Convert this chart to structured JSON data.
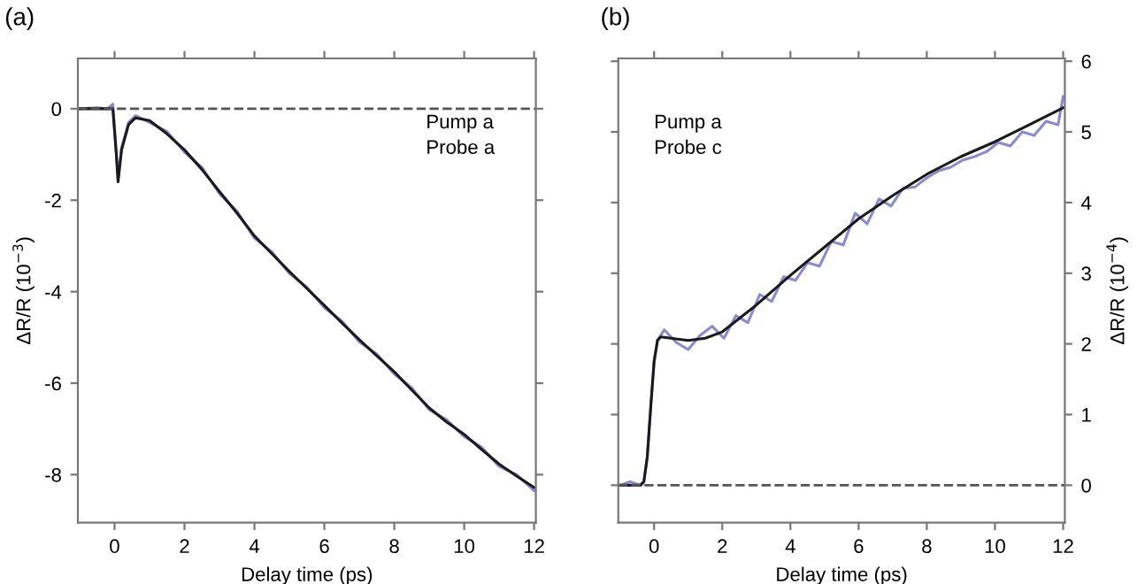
{
  "chart_data": [
    {
      "type": "line",
      "title": "(a)",
      "xlabel": "Delay time (ps)",
      "ylabel": "ΔR/R (10$^{−3}$)",
      "annotations": [
        "Pump a\nProbe a"
      ],
      "xlim": [
        -1.05,
        12.05
      ],
      "xticks": [
        0,
        2,
        4,
        6,
        8,
        10,
        12
      ],
      "ylim": [
        -9.05,
        1.1
      ],
      "yticks": [
        0,
        -2,
        -4,
        -6,
        -8
      ],
      "grid": false,
      "legend": false,
      "ref_lines": [
        {
          "axis": "y",
          "value": 0,
          "color": "#555555",
          "line_style": "dashed"
        }
      ],
      "series": [
        {
          "color": "#8a8ad0",
          "x": [
            -1,
            -0.5,
            -0.2,
            -0.05,
            0.05,
            0.1,
            0.2,
            0.4,
            0.6,
            1,
            1.5,
            2,
            2.5,
            3,
            3.5,
            4,
            4.5,
            5,
            5.5,
            6,
            6.5,
            7,
            7.5,
            8,
            8.5,
            9,
            9.5,
            10,
            10.5,
            11,
            11.5,
            12
          ],
          "values": [
            0,
            0.02,
            0,
            0.1,
            -0.95,
            -1.55,
            -0.85,
            -0.3,
            -0.15,
            -0.3,
            -0.5,
            -0.95,
            -1.28,
            -1.86,
            -2.24,
            -2.83,
            -3.13,
            -3.6,
            -3.9,
            -4.35,
            -4.64,
            -5.1,
            -5.36,
            -5.8,
            -6.1,
            -6.58,
            -6.8,
            -7.17,
            -7.4,
            -7.82,
            -8.0,
            -8.35
          ]
        },
        {
          "color": "#1a1a1a",
          "x": [
            -1,
            -0.5,
            -0.2,
            -0.05,
            0.05,
            0.1,
            0.2,
            0.4,
            0.6,
            1,
            1.5,
            2,
            2.5,
            3,
            3.5,
            4,
            4.5,
            5,
            5.5,
            6,
            6.5,
            7,
            7.5,
            8,
            8.5,
            9,
            9.5,
            10,
            10.5,
            11,
            11.5,
            12
          ],
          "values": [
            0,
            0,
            0,
            0,
            -1.0,
            -1.6,
            -0.9,
            -0.35,
            -0.2,
            -0.26,
            -0.55,
            -0.9,
            -1.33,
            -1.81,
            -2.28,
            -2.78,
            -3.17,
            -3.56,
            -3.93,
            -4.3,
            -4.68,
            -5.05,
            -5.4,
            -5.75,
            -6.15,
            -6.54,
            -6.85,
            -7.12,
            -7.45,
            -7.77,
            -8.03,
            -8.28
          ]
        }
      ]
    },
    {
      "type": "line",
      "title": "(b)",
      "xlabel": "Delay time (ps)",
      "y2label": "ΔR/R (10$^{−4}$)",
      "annotations": [
        "Pump a\nProbe c"
      ],
      "xlim": [
        -1.05,
        12.05
      ],
      "xticks": [
        0,
        2,
        4,
        6,
        8,
        10,
        12
      ],
      "y2lim": [
        -0.53,
        6.04
      ],
      "y2ticks": [
        0,
        1,
        2,
        3,
        4,
        5,
        6
      ],
      "grid": false,
      "legend": false,
      "ref_lines": [
        {
          "axis": "y2",
          "value": 0,
          "color": "#555555",
          "line_style": "dashed"
        }
      ],
      "series": [
        {
          "color": "#8a8ad0",
          "axis": "y2",
          "x": [
            -1,
            -0.7,
            -0.4,
            -0.3,
            -0.2,
            -0.1,
            0,
            0.1,
            0.3,
            0.65,
            1.0,
            1.35,
            1.7,
            2.05,
            2.4,
            2.75,
            3.1,
            3.45,
            3.8,
            4.15,
            4.5,
            4.85,
            5.2,
            5.55,
            5.9,
            6.25,
            6.6,
            6.95,
            7.3,
            7.65,
            8,
            8.35,
            8.7,
            9.05,
            9.4,
            9.75,
            10.1,
            10.45,
            10.8,
            11.15,
            11.5,
            11.85,
            12
          ],
          "values": [
            0,
            0.05,
            0,
            0.05,
            0.4,
            1.1,
            1.75,
            2.05,
            2.2,
            2.02,
            1.92,
            2.12,
            2.25,
            2.08,
            2.4,
            2.3,
            2.7,
            2.6,
            2.95,
            2.9,
            3.15,
            3.1,
            3.45,
            3.4,
            3.85,
            3.7,
            4.05,
            3.95,
            4.2,
            4.22,
            4.35,
            4.45,
            4.5,
            4.6,
            4.65,
            4.72,
            4.85,
            4.8,
            5.0,
            4.95,
            5.15,
            5.1,
            5.5
          ]
        },
        {
          "color": "#1a1a1a",
          "axis": "y2",
          "x": [
            -1,
            -0.4,
            -0.3,
            -0.2,
            -0.1,
            0,
            0.1,
            0.2,
            0.5,
            1,
            1.5,
            2,
            3,
            4,
            5,
            6,
            7,
            8,
            9,
            10,
            11,
            12
          ],
          "values": [
            0,
            0,
            0.05,
            0.4,
            1.1,
            1.75,
            2.05,
            2.1,
            2.08,
            2.05,
            2.08,
            2.17,
            2.55,
            2.97,
            3.37,
            3.77,
            4.1,
            4.4,
            4.65,
            4.86,
            5.1,
            5.34
          ]
        }
      ]
    }
  ]
}
